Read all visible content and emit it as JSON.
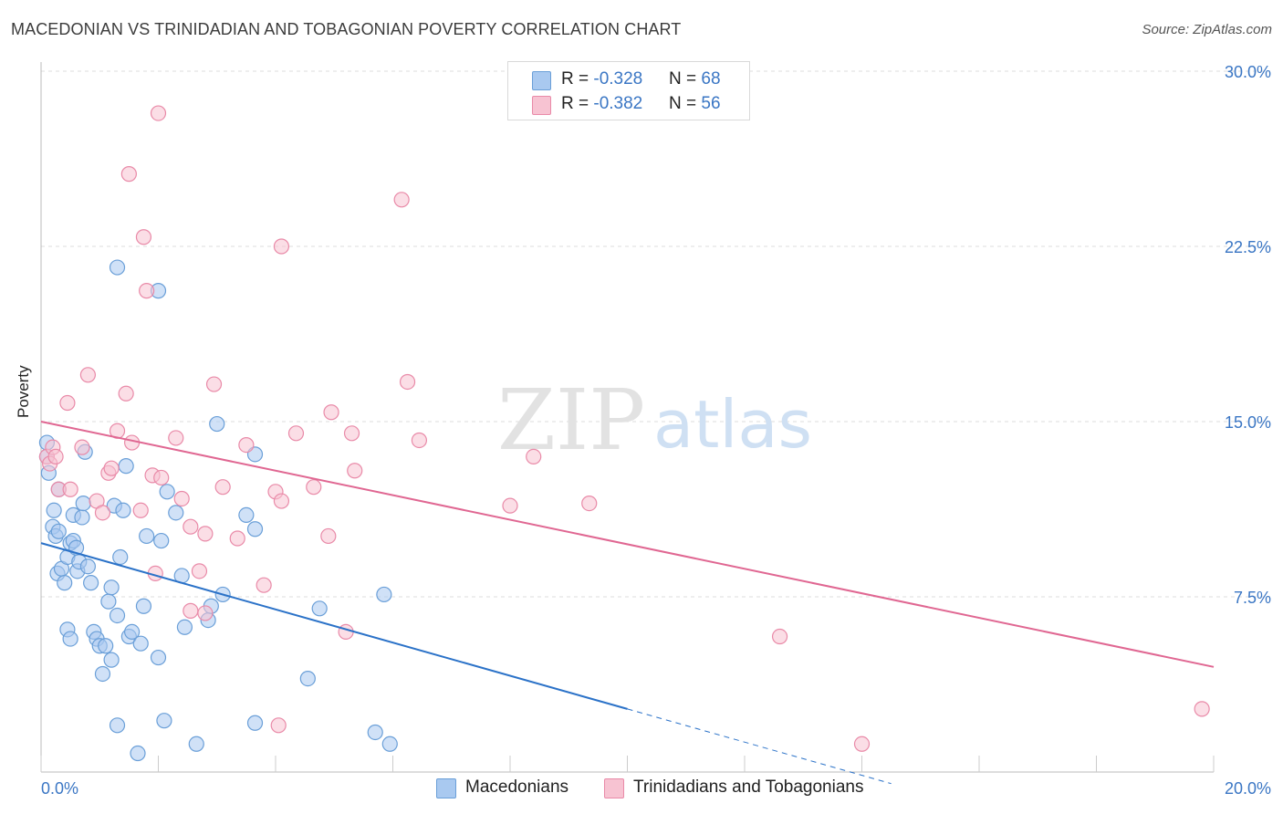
{
  "header": {
    "title": "MACEDONIAN VS TRINIDADIAN AND TOBAGONIAN POVERTY CORRELATION CHART",
    "source": "Source: ZipAtlas.com"
  },
  "watermark": {
    "zip": "ZIP",
    "atlas": "atlas"
  },
  "legend": {
    "rows": [
      {
        "r_label": "R = ",
        "r_value": "-0.328",
        "n_label": "N = ",
        "n_value": "68",
        "color": "#a9c9f0",
        "border": "#6a9fd8"
      },
      {
        "r_label": "R = ",
        "r_value": "-0.382",
        "n_label": "N = ",
        "n_value": "56",
        "color": "#f7c3d2",
        "border": "#e98aa8"
      }
    ]
  },
  "bottom_legend": {
    "items": [
      {
        "label": "Macedonians",
        "color": "#a9c9f0",
        "border": "#6a9fd8"
      },
      {
        "label": "Trinidadians and Tobagonians",
        "color": "#f7c3d2",
        "border": "#e98aa8"
      }
    ]
  },
  "chart_data": {
    "type": "scatter",
    "title": "MACEDONIAN VS TRINIDADIAN AND TOBAGONIAN POVERTY CORRELATION CHART",
    "xlabel": "",
    "ylabel": "Poverty",
    "xlim": [
      0,
      20
    ],
    "ylim": [
      0,
      30
    ],
    "x_tick_labels": [
      "0.0%",
      "20.0%"
    ],
    "y_ticks": [
      7.5,
      15.0,
      22.5,
      30.0
    ],
    "y_tick_labels": [
      "7.5%",
      "15.0%",
      "22.5%",
      "30.0%"
    ],
    "grid": true,
    "legend_position": "top-center",
    "series": [
      {
        "name": "Macedonians",
        "color": "#6a9fd8",
        "fill": "#a9c9f0",
        "line_color": "#2b72c8",
        "trend": {
          "x0": 0.0,
          "y0": 9.8,
          "x1": 10.0,
          "y1": 2.7,
          "dash_x1": 14.5
        },
        "points": [
          [
            0.1,
            14.1
          ],
          [
            0.1,
            13.5
          ],
          [
            0.13,
            12.8
          ],
          [
            0.2,
            10.5
          ],
          [
            0.22,
            11.2
          ],
          [
            0.25,
            10.1
          ],
          [
            0.3,
            10.3
          ],
          [
            0.28,
            8.5
          ],
          [
            0.35,
            8.7
          ],
          [
            0.4,
            8.1
          ],
          [
            0.45,
            9.2
          ],
          [
            0.5,
            9.8
          ],
          [
            0.55,
            9.9
          ],
          [
            0.6,
            9.6
          ],
          [
            0.62,
            8.6
          ],
          [
            0.65,
            9.0
          ],
          [
            0.55,
            11.0
          ],
          [
            0.7,
            10.9
          ],
          [
            0.72,
            11.5
          ],
          [
            0.75,
            13.7
          ],
          [
            0.8,
            8.8
          ],
          [
            0.85,
            8.1
          ],
          [
            0.45,
            6.1
          ],
          [
            0.5,
            5.7
          ],
          [
            0.9,
            6.0
          ],
          [
            0.95,
            5.7
          ],
          [
            1.0,
            5.4
          ],
          [
            1.05,
            4.2
          ],
          [
            1.1,
            5.4
          ],
          [
            1.15,
            7.3
          ],
          [
            1.2,
            7.9
          ],
          [
            1.25,
            11.4
          ],
          [
            1.3,
            6.7
          ],
          [
            1.35,
            9.2
          ],
          [
            1.4,
            11.2
          ],
          [
            1.5,
            5.8
          ],
          [
            1.55,
            6.0
          ],
          [
            1.2,
            4.8
          ],
          [
            1.7,
            5.5
          ],
          [
            1.75,
            7.1
          ],
          [
            1.8,
            10.1
          ],
          [
            2.0,
            4.9
          ],
          [
            2.05,
            9.9
          ],
          [
            2.15,
            12.0
          ],
          [
            2.3,
            11.1
          ],
          [
            2.45,
            6.2
          ],
          [
            2.85,
            6.5
          ],
          [
            2.9,
            7.1
          ],
          [
            3.1,
            7.6
          ],
          [
            3.0,
            14.9
          ],
          [
            3.5,
            11.0
          ],
          [
            3.65,
            10.4
          ],
          [
            3.65,
            13.6
          ],
          [
            4.75,
            7.0
          ],
          [
            4.55,
            4.0
          ],
          [
            1.3,
            2.0
          ],
          [
            1.65,
            0.8
          ],
          [
            2.65,
            1.2
          ],
          [
            2.1,
            2.2
          ],
          [
            3.65,
            2.1
          ],
          [
            5.7,
            1.7
          ],
          [
            5.95,
            1.2
          ],
          [
            5.85,
            7.6
          ],
          [
            1.3,
            21.6
          ],
          [
            2.0,
            20.6
          ],
          [
            0.3,
            12.1
          ],
          [
            1.45,
            13.1
          ],
          [
            2.4,
            8.4
          ]
        ]
      },
      {
        "name": "Trinidadians and Tobagonians",
        "color": "#e98aa8",
        "fill": "#f7c3d2",
        "line_color": "#e06792",
        "trend": {
          "x0": 0.0,
          "y0": 15.0,
          "x1": 20.0,
          "y1": 4.5
        },
        "points": [
          [
            0.1,
            13.5
          ],
          [
            0.15,
            13.2
          ],
          [
            0.2,
            13.9
          ],
          [
            0.25,
            13.5
          ],
          [
            0.3,
            12.1
          ],
          [
            0.45,
            15.8
          ],
          [
            0.5,
            12.1
          ],
          [
            0.7,
            13.9
          ],
          [
            0.8,
            17.0
          ],
          [
            0.95,
            11.6
          ],
          [
            1.05,
            11.1
          ],
          [
            1.15,
            12.8
          ],
          [
            1.2,
            13.0
          ],
          [
            1.3,
            14.6
          ],
          [
            1.45,
            16.2
          ],
          [
            1.55,
            14.1
          ],
          [
            1.7,
            11.2
          ],
          [
            1.9,
            12.7
          ],
          [
            1.95,
            8.5
          ],
          [
            2.05,
            12.6
          ],
          [
            2.3,
            14.3
          ],
          [
            2.4,
            11.7
          ],
          [
            2.55,
            10.5
          ],
          [
            2.7,
            8.6
          ],
          [
            2.8,
            10.2
          ],
          [
            2.95,
            16.6
          ],
          [
            3.1,
            12.2
          ],
          [
            3.35,
            10.0
          ],
          [
            3.5,
            14.0
          ],
          [
            3.8,
            8.0
          ],
          [
            4.0,
            12.0
          ],
          [
            4.1,
            11.6
          ],
          [
            4.35,
            14.5
          ],
          [
            4.65,
            12.2
          ],
          [
            4.9,
            10.1
          ],
          [
            4.95,
            15.4
          ],
          [
            5.3,
            14.5
          ],
          [
            5.35,
            12.9
          ],
          [
            6.25,
            16.7
          ],
          [
            6.45,
            14.2
          ],
          [
            8.0,
            11.4
          ],
          [
            8.4,
            13.5
          ],
          [
            9.35,
            11.5
          ],
          [
            12.6,
            5.8
          ],
          [
            14.0,
            1.2
          ],
          [
            19.8,
            2.7
          ],
          [
            2.0,
            28.2
          ],
          [
            1.5,
            25.6
          ],
          [
            1.75,
            22.9
          ],
          [
            4.1,
            22.5
          ],
          [
            6.15,
            24.5
          ],
          [
            1.8,
            20.6
          ],
          [
            2.55,
            6.9
          ],
          [
            4.05,
            2.0
          ],
          [
            5.2,
            6.0
          ],
          [
            2.8,
            6.8
          ]
        ]
      }
    ]
  }
}
